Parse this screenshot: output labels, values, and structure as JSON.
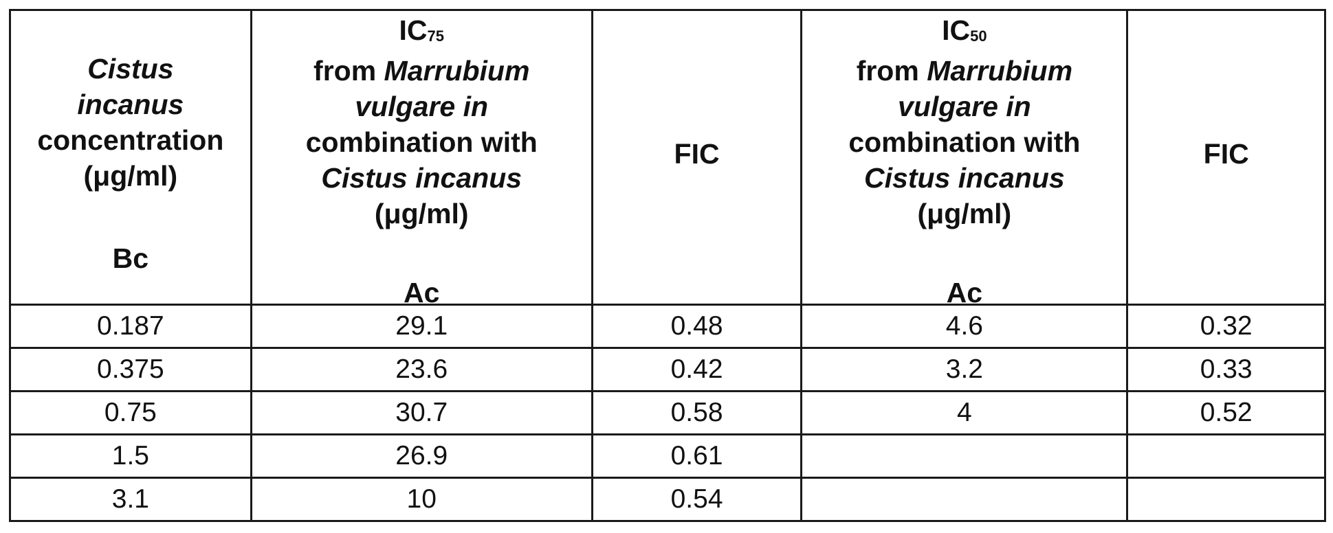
{
  "table": {
    "headers": {
      "col1": {
        "line1": "Cistus",
        "line2": "incanus",
        "line3": "concentration",
        "line4": "(μg/ml)",
        "symbol": "Bc"
      },
      "col2": {
        "ic_label": "IC",
        "ic_sub": "75",
        "line2_plain": "from ",
        "line2_italic": "Marrubium",
        "line3_italic": "vulgare in",
        "line4": "combination with",
        "line5_italic": "Cistus incanus",
        "line6": "(μg/ml)",
        "symbol": "Ac"
      },
      "col3": {
        "label": "FIC"
      },
      "col4": {
        "ic_label": "IC",
        "ic_sub": "50",
        "line2_plain": "from ",
        "line2_italic": "Marrubium",
        "line3_italic": "vulgare in",
        "line4": "combination with",
        "line5_italic": "Cistus incanus",
        "line6": "(μg/ml)",
        "symbol": "Ac"
      },
      "col5": {
        "label": "FIC"
      }
    },
    "rows": [
      [
        "0.187",
        "29.1",
        "0.48",
        "4.6",
        "0.32"
      ],
      [
        "0.375",
        "23.6",
        "0.42",
        "3.2",
        "0.33"
      ],
      [
        "0.75",
        "30.7",
        "0.58",
        "4",
        "0.52"
      ],
      [
        "1.5",
        "26.9",
        "0.61",
        "",
        ""
      ],
      [
        "3.1",
        "10",
        "0.54",
        "",
        ""
      ]
    ]
  }
}
